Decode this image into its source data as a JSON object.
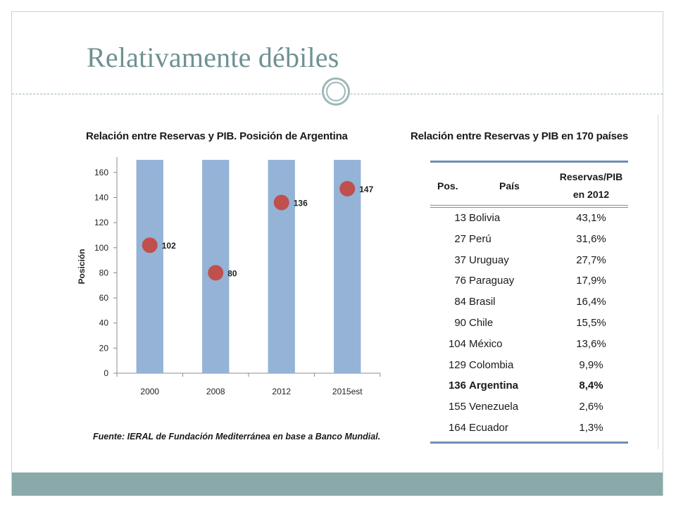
{
  "slide": {
    "title": "Relativamente débiles"
  },
  "left_chart": {
    "title": "Relación entre Reservas y PIB. Posición de Argentina",
    "source": "Fuente: IERAL de Fundación Mediterránea en base a Banco Mundial."
  },
  "right_table": {
    "title": "Relación entre Reservas y PIB en 170 países",
    "headers": {
      "pos": "Pos.",
      "pais": "País",
      "reservas_line1": "Reservas/PIB",
      "reservas_line2": "en 2012"
    },
    "rows": [
      {
        "pos": "13",
        "pais": "Bolivia",
        "valor": "43,1%",
        "highlight": false
      },
      {
        "pos": "27",
        "pais": "Perú",
        "valor": "31,6%",
        "highlight": false
      },
      {
        "pos": "37",
        "pais": "Uruguay",
        "valor": "27,7%",
        "highlight": false
      },
      {
        "pos": "76",
        "pais": "Paraguay",
        "valor": "17,9%",
        "highlight": false
      },
      {
        "pos": "84",
        "pais": "Brasil",
        "valor": "16,4%",
        "highlight": false
      },
      {
        "pos": "90",
        "pais": "Chile",
        "valor": "15,5%",
        "highlight": false
      },
      {
        "pos": "104",
        "pais": "México",
        "valor": "13,6%",
        "highlight": false
      },
      {
        "pos": "129",
        "pais": "Colombia",
        "valor": "9,9%",
        "highlight": false
      },
      {
        "pos": "136",
        "pais": "Argentina",
        "valor": "8,4%",
        "highlight": true
      },
      {
        "pos": "155",
        "pais": "Venezuela",
        "valor": "2,6%",
        "highlight": false
      },
      {
        "pos": "164",
        "pais": "Ecuador",
        "valor": "1,3%",
        "highlight": false
      }
    ]
  },
  "chart_data": {
    "type": "scatter",
    "title": "Relación entre Reservas y PIB. Posición de Argentina",
    "categories": [
      "2000",
      "2008",
      "2012",
      "2015est"
    ],
    "ylabel": "Posición",
    "xlabel": "",
    "ylim": [
      0,
      170
    ],
    "yticks": [
      0,
      20,
      40,
      60,
      80,
      100,
      120,
      140,
      160
    ],
    "background_bars": {
      "values": [
        170,
        170,
        170,
        170
      ],
      "color": "#95b3d7"
    },
    "series": [
      {
        "values": [
          102,
          80,
          136,
          147
        ],
        "labels": [
          "102",
          "80",
          "136",
          "147"
        ],
        "color": "#c0504d"
      }
    ],
    "grid": false,
    "legend": "none"
  },
  "colors": {
    "title_text": "#6f9193",
    "accent_bar": "#8aaaaa",
    "bar_fill": "#95b3d7",
    "marker_fill": "#c0504d",
    "table_rule": "#6f8fb3"
  }
}
